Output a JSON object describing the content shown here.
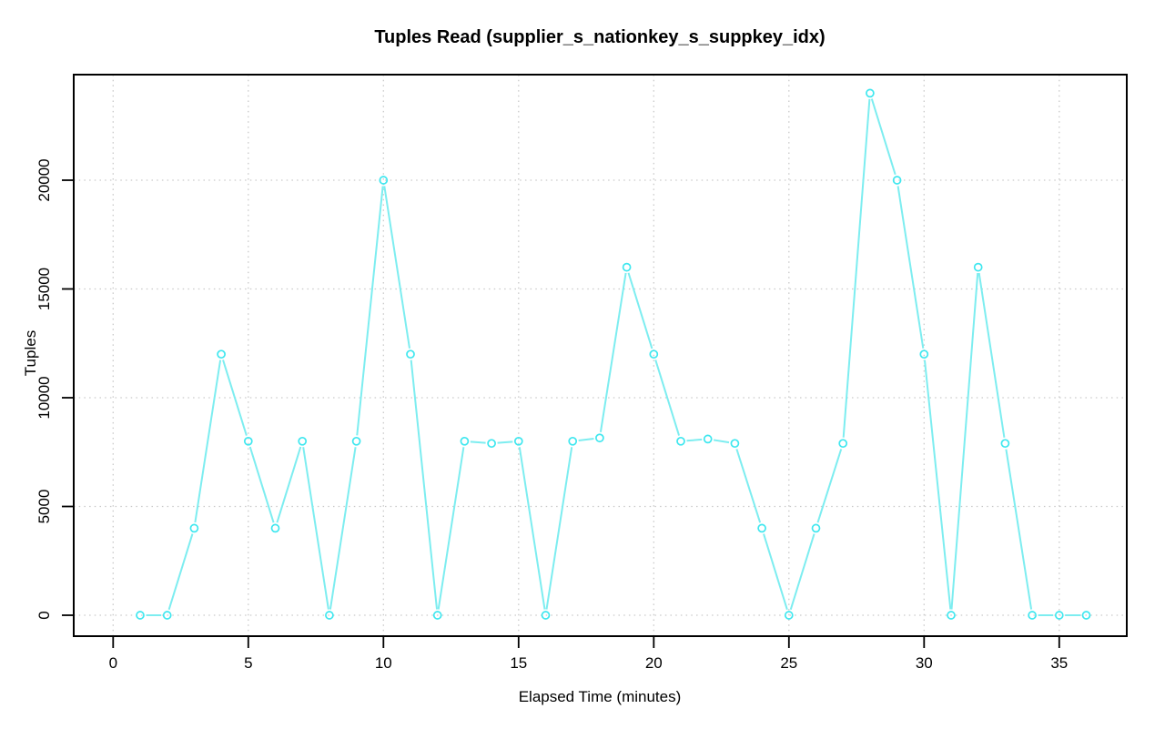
{
  "chart_data": {
    "type": "line",
    "title": "Tuples Read (supplier_s_nationkey_s_suppkey_idx)",
    "xlabel": "Elapsed Time (minutes)",
    "ylabel": "Tuples",
    "series_name": "tuples-read",
    "x": [
      1,
      2,
      3,
      4,
      5,
      6,
      7,
      8,
      9,
      10,
      11,
      12,
      13,
      14,
      15,
      16,
      17,
      18,
      19,
      20,
      21,
      22,
      23,
      24,
      25,
      26,
      27,
      28,
      29,
      30,
      31,
      32,
      33,
      34,
      35,
      36
    ],
    "values": [
      0,
      0,
      4000,
      12000,
      8000,
      4000,
      8000,
      0,
      8000,
      20000,
      12000,
      0,
      8000,
      7900,
      8000,
      0,
      8000,
      8150,
      16000,
      12000,
      8000,
      8100,
      7900,
      4000,
      0,
      4000,
      7900,
      24000,
      20000,
      12000,
      0,
      16000,
      7900,
      0,
      0,
      0
    ],
    "x_ticks": [
      0,
      5,
      10,
      15,
      20,
      25,
      30,
      35
    ],
    "x_tick_labels": [
      "0",
      "5",
      "10",
      "15",
      "20",
      "25",
      "30",
      "35"
    ],
    "y_ticks": [
      0,
      5000,
      10000,
      15000,
      20000
    ],
    "y_tick_labels": [
      "0",
      "5000",
      "10000",
      "15000",
      "20000"
    ],
    "xlim": [
      -1.4,
      37.5
    ],
    "ylim": [
      -950,
      24850
    ],
    "grid": "dotted-both-axes",
    "legend": "none",
    "marker": "open-circle",
    "line_style": "type-b-gap-segments",
    "colors": {
      "line": "#7DEDF0",
      "marker": "#3FE7EF",
      "grid": "#C9C9C9",
      "axis": "#000000",
      "text": "#000000",
      "background": "#FFFFFF"
    }
  }
}
